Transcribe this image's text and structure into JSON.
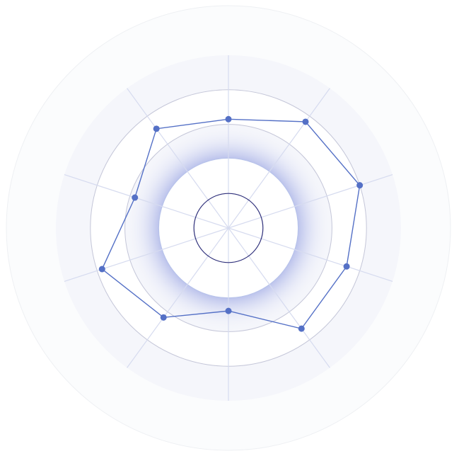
{
  "chart_data": {
    "type": "radar",
    "title": "",
    "axis_count": 10,
    "rlim": [
      0,
      100
    ],
    "rings": [
      20,
      40,
      60,
      80,
      100
    ],
    "grid": true,
    "series": [
      {
        "values": [
          63,
          76,
          80,
          72,
          72,
          48,
          64,
          77,
          57,
          71
        ]
      }
    ],
    "colors": {
      "series": "#5470c6",
      "axis": "#d6dbef",
      "ring": "#c4c6d8",
      "band": "#f5f6fb",
      "inner_ring": "#2e2f7a",
      "outer_halo": "#fbfcfd"
    }
  }
}
